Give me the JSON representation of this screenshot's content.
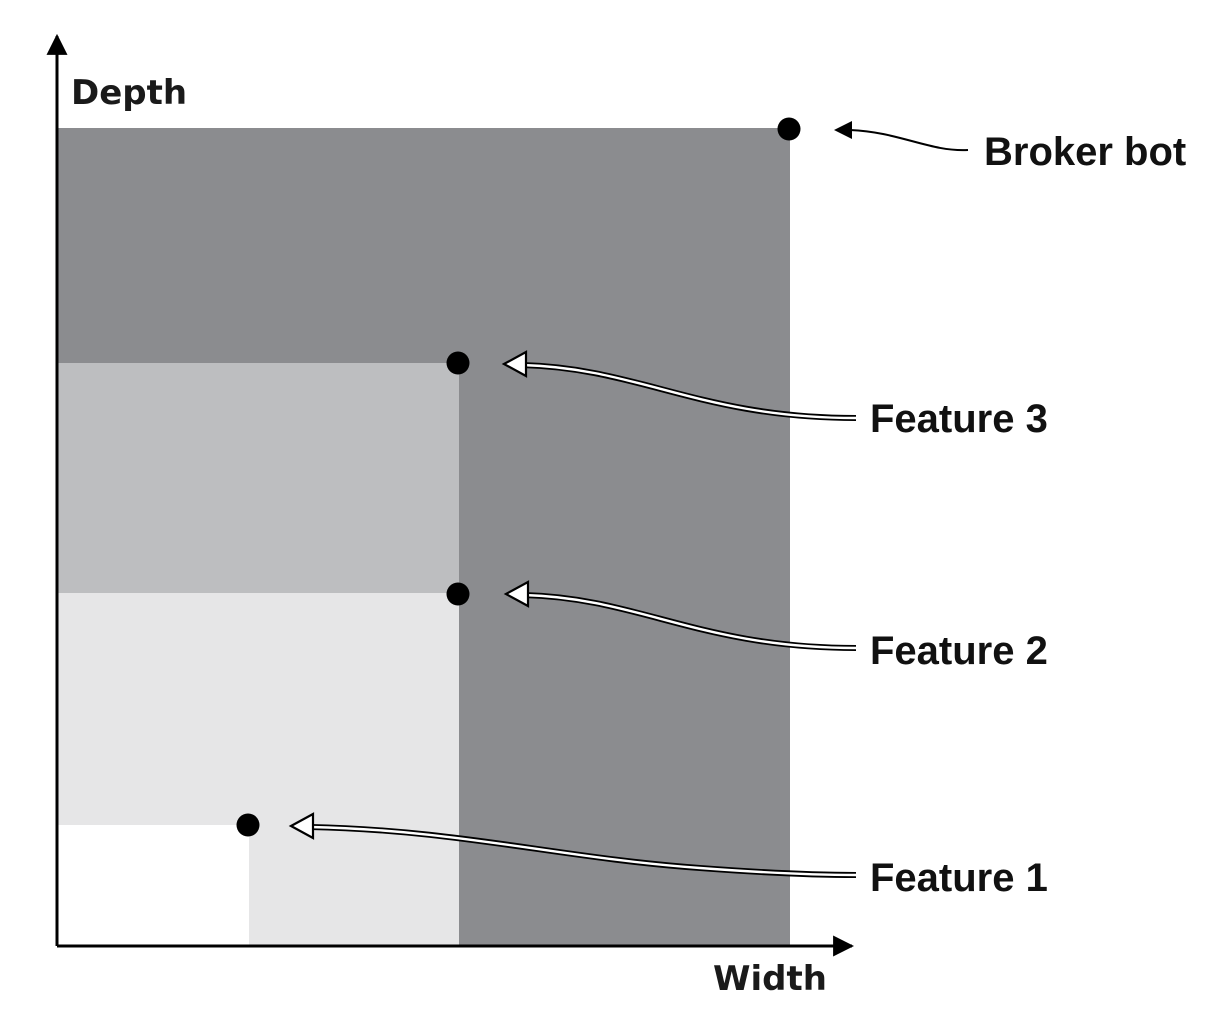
{
  "axes": {
    "y_label": "Depth",
    "x_label": "Width"
  },
  "colors": {
    "region_broker": "#8b8c8f",
    "region_feature3": "#bdbec0",
    "region_feature2": "#e6e6e7",
    "region_feature1": "#ffffff",
    "axis": "#000000",
    "point": "#000000",
    "arrow_fill": "#ffffff",
    "arrow_outline": "#000000"
  },
  "items": [
    {
      "id": "feature-1",
      "label": "Feature 1",
      "width": 1,
      "depth": 1
    },
    {
      "id": "feature-2",
      "label": "Feature 2",
      "width": 2,
      "depth": 2
    },
    {
      "id": "feature-3",
      "label": "Feature 3",
      "width": 2,
      "depth": 3
    },
    {
      "id": "broker-bot",
      "label": "Broker bot",
      "width": 3,
      "depth": 4
    }
  ]
}
